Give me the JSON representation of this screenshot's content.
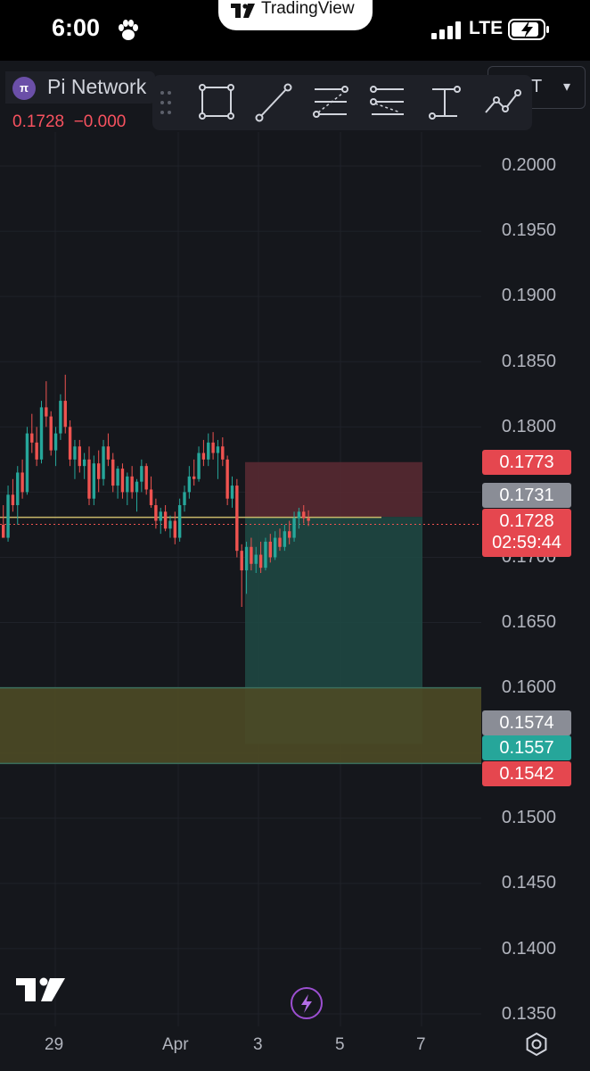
{
  "status_bar": {
    "time": "6:00",
    "network": "LTE",
    "app_pill": "TradingView"
  },
  "symbol": {
    "name": "Pi Network",
    "icon_glyph": "π",
    "last_price": "0.1728",
    "change": "−0.000"
  },
  "interval": {
    "label": "T",
    "caret": "▾"
  },
  "toolbar": {
    "tools": [
      "rectangle-tool-icon",
      "trend-line-tool-icon",
      "fib-retracement-tool-icon",
      "parallel-channel-tool-icon",
      "price-range-tool-icon",
      "path-tool-icon"
    ]
  },
  "price_axis": {
    "labels": [
      "0.2000",
      "0.1950",
      "0.1900",
      "0.1850",
      "0.1800",
      "0.1700",
      "0.1650",
      "0.1600",
      "0.1500",
      "0.1450",
      "0.1400",
      "0.1350"
    ]
  },
  "price_tags": {
    "stop_loss": "0.1773",
    "entry": "0.1731",
    "current": "0.1728",
    "countdown": "02:59:44",
    "level_a": "0.1574",
    "target": "0.1557",
    "level_b": "0.1542"
  },
  "time_axis": {
    "labels": [
      "29",
      "Apr",
      "3",
      "5",
      "7"
    ]
  },
  "colors": {
    "background": "#15171c",
    "up": "#26a69a",
    "down": "#ef5350",
    "stop_zone": "#5a2a33",
    "target_zone": "#1f4a44",
    "support_zone": "#4c4a25"
  },
  "chart_data": {
    "type": "candlestick",
    "symbol": "Pi Network",
    "ylim": [
      0.133,
      0.203
    ],
    "x_ticks": [
      "29",
      "Apr",
      "3",
      "5",
      "7"
    ],
    "position": {
      "side": "short",
      "entry": 0.1731,
      "stop": 0.1773,
      "target": 0.1557
    },
    "zones": [
      {
        "low": 0.1542,
        "high": 0.16
      }
    ],
    "horizontal_lines": [
      0.1731,
      0.1728
    ],
    "candles": [
      [
        0.1725,
        0.174,
        0.1715,
        0.1715
      ],
      [
        0.1715,
        0.1755,
        0.1712,
        0.1748
      ],
      [
        0.1748,
        0.176,
        0.1735,
        0.174
      ],
      [
        0.174,
        0.177,
        0.1725,
        0.1765
      ],
      [
        0.1765,
        0.1775,
        0.1745,
        0.175
      ],
      [
        0.175,
        0.18,
        0.1748,
        0.1795
      ],
      [
        0.1795,
        0.181,
        0.178,
        0.1788
      ],
      [
        0.1788,
        0.18,
        0.177,
        0.1775
      ],
      [
        0.1775,
        0.182,
        0.1772,
        0.1815
      ],
      [
        0.1815,
        0.1835,
        0.18,
        0.1808
      ],
      [
        0.1808,
        0.1812,
        0.1778,
        0.1782
      ],
      [
        0.1782,
        0.18,
        0.177,
        0.1795
      ],
      [
        0.1795,
        0.1825,
        0.179,
        0.182
      ],
      [
        0.182,
        0.184,
        0.1795,
        0.18
      ],
      [
        0.18,
        0.1805,
        0.177,
        0.1775
      ],
      [
        0.1775,
        0.179,
        0.176,
        0.1785
      ],
      [
        0.1785,
        0.179,
        0.1765,
        0.177
      ],
      [
        0.177,
        0.178,
        0.176,
        0.1775
      ],
      [
        0.1775,
        0.1785,
        0.174,
        0.1745
      ],
      [
        0.1745,
        0.1778,
        0.174,
        0.1772
      ],
      [
        0.1772,
        0.1782,
        0.175,
        0.176
      ],
      [
        0.176,
        0.179,
        0.1755,
        0.1785
      ],
      [
        0.1785,
        0.1795,
        0.177,
        0.1775
      ],
      [
        0.1775,
        0.178,
        0.175,
        0.1755
      ],
      [
        0.1755,
        0.177,
        0.1745,
        0.1768
      ],
      [
        0.1768,
        0.1772,
        0.1745,
        0.175
      ],
      [
        0.175,
        0.1765,
        0.174,
        0.1762
      ],
      [
        0.1762,
        0.177,
        0.1745,
        0.175
      ],
      [
        0.175,
        0.176,
        0.1735,
        0.1758
      ],
      [
        0.1758,
        0.1775,
        0.175,
        0.177
      ],
      [
        0.177,
        0.1772,
        0.1748,
        0.1752
      ],
      [
        0.1752,
        0.1762,
        0.1738,
        0.174
      ],
      [
        0.174,
        0.1745,
        0.1722,
        0.1728
      ],
      [
        0.1728,
        0.1738,
        0.1718,
        0.1735
      ],
      [
        0.1735,
        0.174,
        0.172,
        0.1722
      ],
      [
        0.1722,
        0.1732,
        0.1715,
        0.1728
      ],
      [
        0.1728,
        0.1735,
        0.171,
        0.1715
      ],
      [
        0.1715,
        0.1745,
        0.1712,
        0.174
      ],
      [
        0.174,
        0.1755,
        0.1735,
        0.175
      ],
      [
        0.175,
        0.177,
        0.1745,
        0.1762
      ],
      [
        0.1762,
        0.1775,
        0.1755,
        0.176
      ],
      [
        0.176,
        0.1785,
        0.1758,
        0.178
      ],
      [
        0.178,
        0.179,
        0.177,
        0.1775
      ],
      [
        0.1775,
        0.1795,
        0.177,
        0.1788
      ],
      [
        0.1788,
        0.1796,
        0.1775,
        0.178
      ],
      [
        0.178,
        0.179,
        0.176,
        0.1785
      ],
      [
        0.1785,
        0.1792,
        0.177,
        0.1775
      ],
      [
        0.1775,
        0.1778,
        0.174,
        0.1745
      ],
      [
        0.1745,
        0.1762,
        0.1738,
        0.1755
      ],
      [
        0.1755,
        0.176,
        0.17,
        0.1705
      ],
      [
        0.1705,
        0.171,
        0.1662,
        0.169
      ],
      [
        0.169,
        0.1712,
        0.1672,
        0.1708
      ],
      [
        0.1708,
        0.1715,
        0.169,
        0.1695
      ],
      [
        0.1695,
        0.1708,
        0.1688,
        0.1702
      ],
      [
        0.1702,
        0.1712,
        0.1688,
        0.1692
      ],
      [
        0.1692,
        0.1715,
        0.169,
        0.1712
      ],
      [
        0.1712,
        0.1718,
        0.1696,
        0.17
      ],
      [
        0.17,
        0.172,
        0.1698,
        0.1715
      ],
      [
        0.1715,
        0.1722,
        0.1705,
        0.1708
      ],
      [
        0.1708,
        0.1725,
        0.1705,
        0.172
      ],
      [
        0.172,
        0.1728,
        0.171,
        0.1715
      ],
      [
        0.1715,
        0.1735,
        0.1712,
        0.173
      ],
      [
        0.173,
        0.1738,
        0.1722,
        0.1735
      ],
      [
        0.1735,
        0.174,
        0.1726,
        0.173
      ],
      [
        0.173,
        0.1736,
        0.1724,
        0.1728
      ]
    ]
  }
}
